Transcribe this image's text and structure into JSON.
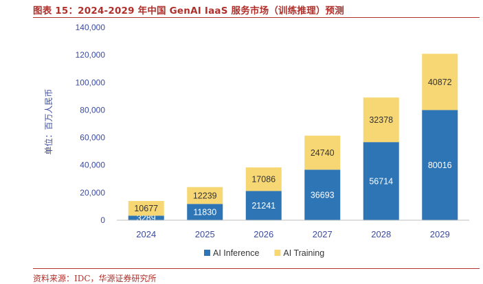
{
  "figure": {
    "title": "图表 15：2024-2029 年中国 GenAI IaaS 服务市场（训练推理）预测",
    "source": "资料来源：IDC，华源证券研究所"
  },
  "chart_data": {
    "type": "bar",
    "stacked": true,
    "categories": [
      "2024",
      "2025",
      "2026",
      "2027",
      "2028",
      "2029"
    ],
    "series": [
      {
        "name": "AI Inference",
        "values": [
          3289,
          11830,
          21241,
          36693,
          56714,
          80016
        ],
        "color": "#2e75b6"
      },
      {
        "name": "AI Training",
        "values": [
          10677,
          12239,
          17086,
          24740,
          32378,
          40872
        ],
        "color": "#f7d774"
      }
    ],
    "ylabel": "单位：百万人民币",
    "ylim": [
      0,
      140000
    ],
    "yticks": [
      "0",
      "20,000",
      "40,000",
      "60,000",
      "80,000",
      "100,000",
      "120,000",
      "140,000"
    ],
    "ytick_values": [
      0,
      20000,
      40000,
      60000,
      80000,
      100000,
      120000,
      140000
    ],
    "legend_position": "bottom",
    "grid": false
  }
}
